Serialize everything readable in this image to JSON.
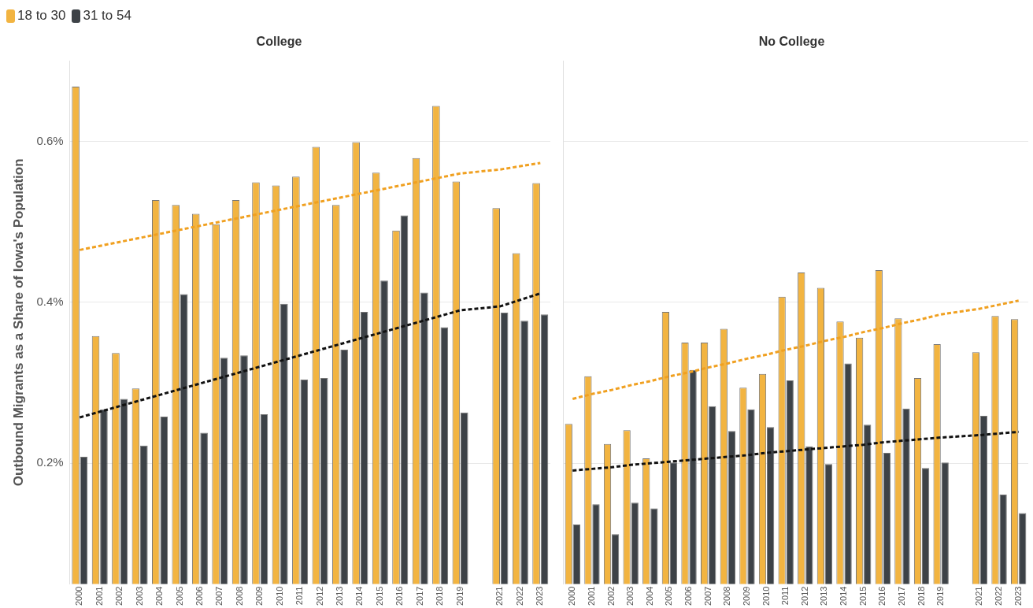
{
  "chart_data": [
    {
      "type": "bar",
      "title": "College",
      "ylabel": "Outbound Migrants as a Share of Iowa's Population",
      "categories": [
        "2000",
        "2001",
        "2002",
        "2003",
        "2004",
        "2005",
        "2006",
        "2007",
        "2008",
        "2009",
        "2010",
        "2011",
        "2012",
        "2013",
        "2014",
        "2015",
        "2016",
        "2017",
        "2018",
        "2019",
        null,
        "2021",
        "2022",
        "2023"
      ],
      "series": [
        {
          "name": "18 to 30",
          "color": "#f2b441",
          "values": [
            0.668,
            0.358,
            0.337,
            0.293,
            0.527,
            0.521,
            0.51,
            0.497,
            0.527,
            0.549,
            0.545,
            0.556,
            0.593,
            0.521,
            0.599,
            0.561,
            0.489,
            0.579,
            0.644,
            0.55,
            null,
            0.517,
            0.461,
            0.548
          ]
        },
        {
          "name": "31 to 54",
          "color": "#3d4247",
          "values": [
            0.208,
            0.267,
            0.28,
            0.222,
            0.258,
            0.41,
            0.238,
            0.331,
            0.334,
            0.261,
            0.398,
            0.304,
            0.306,
            0.341,
            0.388,
            0.427,
            0.508,
            0.412,
            0.369,
            0.263,
            null,
            0.387,
            0.377,
            0.385
          ]
        },
        {
          "type": "line",
          "color": "#f0a020",
          "values": [
            0.465,
            0.47,
            0.475,
            0.48,
            0.485,
            0.49,
            0.495,
            0.5,
            0.505,
            0.51,
            0.515,
            0.52,
            0.525,
            0.53,
            0.535,
            0.54,
            0.545,
            0.55,
            0.555,
            0.56,
            null,
            0.565,
            0.569,
            0.573
          ]
        },
        {
          "type": "line",
          "color": "#111111",
          "values": [
            0.257,
            0.264,
            0.271,
            0.278,
            0.285,
            0.292,
            0.299,
            0.306,
            0.313,
            0.32,
            0.327,
            0.334,
            0.341,
            0.348,
            0.355,
            0.362,
            0.369,
            0.376,
            0.383,
            0.39,
            null,
            0.395,
            0.403,
            0.411
          ]
        }
      ],
      "ylim": [
        0.05,
        0.7
      ],
      "yticks": [
        {
          "value": 0.2,
          "label": "0.2%"
        },
        {
          "value": 0.4,
          "label": "0.4%"
        },
        {
          "value": 0.6,
          "label": "0.6%"
        }
      ],
      "grid": "y",
      "legend": "top left",
      "marker": "none",
      "line_style": "dashed"
    },
    {
      "type": "bar",
      "title": "No College",
      "categories": [
        "2000",
        "2001",
        "2002",
        "2003",
        "2004",
        "2005",
        "2006",
        "2007",
        "2008",
        "2009",
        "2010",
        "2011",
        "2012",
        "2013",
        "2014",
        "2015",
        "2016",
        "2017",
        "2018",
        "2019",
        null,
        "2021",
        "2022",
        "2023"
      ],
      "series": [
        {
          "color": "#f2b441",
          "values": [
            0.249,
            0.308,
            0.224,
            0.241,
            0.206,
            0.388,
            0.35,
            0.35,
            0.367,
            0.294,
            0.311,
            0.407,
            0.437,
            0.418,
            0.376,
            0.356,
            0.44,
            0.38,
            0.306,
            0.348,
            null,
            0.338,
            0.383,
            0.379
          ]
        },
        {
          "color": "#3d4247",
          "values": [
            0.124,
            0.149,
            0.112,
            0.151,
            0.144,
            0.201,
            0.316,
            0.271,
            0.24,
            0.267,
            0.245,
            0.303,
            0.221,
            0.199,
            0.324,
            0.248,
            0.213,
            0.268,
            0.194,
            0.201,
            null,
            0.259,
            0.161,
            0.138
          ]
        },
        {
          "type": "line",
          "color": "#f0a020",
          "values": [
            0.28,
            0.286,
            0.291,
            0.297,
            0.302,
            0.308,
            0.313,
            0.319,
            0.324,
            0.33,
            0.335,
            0.341,
            0.346,
            0.352,
            0.357,
            0.363,
            0.368,
            0.374,
            0.379,
            0.385,
            null,
            0.392,
            0.397,
            0.402
          ]
        },
        {
          "type": "line",
          "color": "#111111",
          "values": [
            0.191,
            0.193,
            0.195,
            0.198,
            0.2,
            0.202,
            0.204,
            0.206,
            0.208,
            0.21,
            0.213,
            0.215,
            0.217,
            0.219,
            0.221,
            0.223,
            0.226,
            0.228,
            0.23,
            0.232,
            null,
            0.235,
            0.237,
            0.239
          ]
        }
      ],
      "ylim": [
        0.05,
        0.7
      ],
      "yticks": [
        {
          "value": 0.2,
          "label": null
        },
        {
          "value": 0.4,
          "label": null
        },
        {
          "value": 0.6,
          "label": null
        }
      ],
      "grid": "y",
      "tick_labels": "x",
      "marker": "none",
      "line_style": "dashed"
    }
  ]
}
